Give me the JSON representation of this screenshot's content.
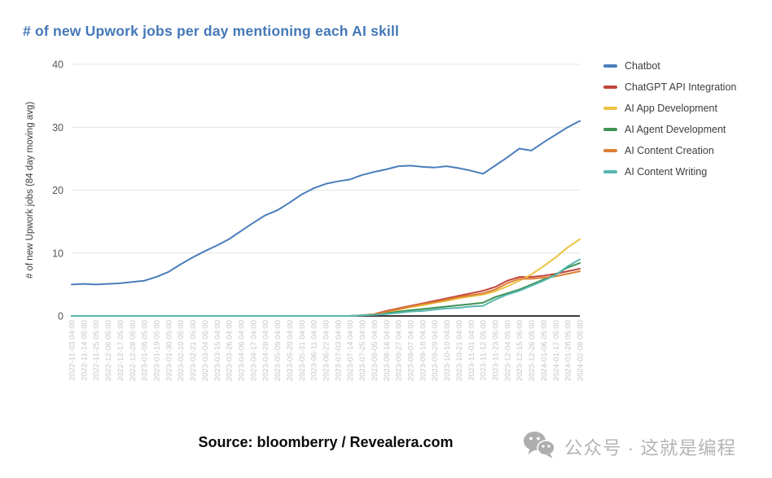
{
  "page": {
    "title": "# of new Upwork jobs per day mentioning each AI skill",
    "source": "Source: bloomberry / Revealera.com",
    "watermark": {
      "icon": "wechat-icon",
      "text": "公众号 · 这就是编程"
    }
  },
  "colors": {
    "title": "#4478b8",
    "gridline": "#e4e4e4",
    "baseline": "#3b3b3b",
    "y_tick_label": "#565656",
    "x_tick_label": "#c7c7c7",
    "axis_title": "#3c3c3c",
    "legend_text": "#3d3d3d",
    "watermark": "#b5b5b5"
  },
  "chart_data": {
    "type": "line",
    "title": "# of new Upwork jobs per day mentioning each AI skill",
    "xlabel": "",
    "ylabel": "# of new Upwork jobs (84 day moving avg)",
    "ylim": [
      0,
      40
    ],
    "yticks": [
      0,
      10,
      20,
      30,
      40
    ],
    "grid": true,
    "legend_position": "right",
    "categories": [
      "2022-11-03 04:00",
      "2022-11-14 05:00",
      "2022-11-25 05:00",
      "2022-12-06 05:00",
      "2022-12-17 05:00",
      "2022-12-28 05:00",
      "2023-01-08 05:00",
      "2023-01-19 05:00",
      "2023-01-30 05:00",
      "2023-02-10 05:00",
      "2023-02-21 05:00",
      "2023-03-04 05:00",
      "2023-03-15 04:00",
      "2023-03-26 04:00",
      "2023-04-06 04:00",
      "2023-04-17 04:00",
      "2023-04-28 04:00",
      "2023-05-09 04:00",
      "2023-05-20 04:00",
      "2023-05-31 04:00",
      "2023-06-11 04:00",
      "2023-06-22 04:00",
      "2023-07-03 04:00",
      "2023-07-14 04:00",
      "2023-07-25 04:00",
      "2023-08-05 04:00",
      "2023-08-16 04:00",
      "2023-08-27 04:00",
      "2023-09-07 04:00",
      "2023-09-18 04:00",
      "2023-09-29 04:00",
      "2023-10-10 04:00",
      "2023-10-21 04:00",
      "2023-11-01 04:00",
      "2023-11-12 05:00",
      "2023-11-23 05:00",
      "2023-12-04 05:00",
      "2023-12-15 05:00",
      "2023-12-26 05:00",
      "2024-01-06 05:00",
      "2024-01-17 05:00",
      "2024-01-28 05:00",
      "2024-02-08 05:00"
    ],
    "series": [
      {
        "name": "Chatbot",
        "color": "#4a7ebb",
        "values": [
          5.0,
          5.1,
          5.0,
          5.1,
          5.2,
          5.4,
          5.6,
          6.2,
          7.0,
          8.2,
          9.3,
          10.3,
          11.2,
          12.2,
          13.5,
          14.8,
          16.0,
          16.8,
          18.0,
          19.3,
          20.3,
          21.0,
          21.4,
          21.7,
          22.4,
          22.9,
          23.3,
          23.8,
          23.9,
          23.7,
          23.6,
          23.8,
          23.5,
          23.1,
          22.6,
          23.9,
          25.2,
          26.6,
          26.3,
          27.6,
          28.8,
          30.0,
          31.0
        ]
      },
      {
        "name": "ChatGPT API Integration",
        "color": "#c1453d",
        "values": [
          0,
          0,
          0,
          0,
          0,
          0,
          0,
          0,
          0,
          0,
          0,
          0,
          0,
          0,
          0,
          0,
          0,
          0,
          0,
          0,
          0,
          0,
          0,
          0,
          0.1,
          0.3,
          0.8,
          1.2,
          1.6,
          2.0,
          2.4,
          2.8,
          3.2,
          3.6,
          4.0,
          4.6,
          5.6,
          6.2,
          6.2,
          6.4,
          6.7,
          7.1,
          7.5
        ]
      },
      {
        "name": "AI App Development",
        "color": "#e9c341",
        "values": [
          0,
          0,
          0,
          0,
          0,
          0,
          0,
          0,
          0,
          0,
          0,
          0,
          0,
          0,
          0,
          0,
          0,
          0,
          0,
          0,
          0,
          0,
          0,
          0,
          0.1,
          0.3,
          0.6,
          1.0,
          1.4,
          1.7,
          2.1,
          2.4,
          2.8,
          3.1,
          3.4,
          3.9,
          4.7,
          5.6,
          6.6,
          7.9,
          9.3,
          10.9,
          12.2
        ]
      },
      {
        "name": "AI Agent Development",
        "color": "#3f9254",
        "values": [
          0,
          0,
          0,
          0,
          0,
          0,
          0,
          0,
          0,
          0,
          0,
          0,
          0,
          0,
          0,
          0,
          0,
          0,
          0,
          0,
          0,
          0,
          0,
          0,
          0.1,
          0.2,
          0.4,
          0.7,
          0.9,
          1.1,
          1.3,
          1.5,
          1.7,
          1.9,
          2.1,
          3.0,
          3.6,
          4.2,
          5.0,
          5.8,
          6.6,
          7.7,
          8.4
        ]
      },
      {
        "name": "AI Content Creation",
        "color": "#dd7e33",
        "values": [
          0,
          0,
          0,
          0,
          0,
          0,
          0,
          0,
          0,
          0,
          0,
          0,
          0,
          0,
          0,
          0,
          0,
          0,
          0,
          0,
          0,
          0,
          0,
          0,
          0.1,
          0.3,
          0.7,
          1.1,
          1.5,
          1.9,
          2.2,
          2.6,
          3.0,
          3.3,
          3.6,
          4.2,
          5.2,
          5.9,
          5.9,
          6.1,
          6.3,
          6.7,
          7.1
        ]
      },
      {
        "name": "AI Content Writing",
        "color": "#57b7b1",
        "values": [
          0,
          0,
          0,
          0,
          0,
          0,
          0,
          0,
          0,
          0,
          0,
          0,
          0,
          0,
          0,
          0,
          0,
          0,
          0,
          0,
          0,
          0,
          0,
          0,
          0.1,
          0.2,
          0.3,
          0.5,
          0.7,
          0.8,
          1.0,
          1.2,
          1.3,
          1.5,
          1.6,
          2.6,
          3.4,
          4.0,
          4.8,
          5.6,
          6.5,
          7.9,
          9.0
        ]
      }
    ]
  }
}
